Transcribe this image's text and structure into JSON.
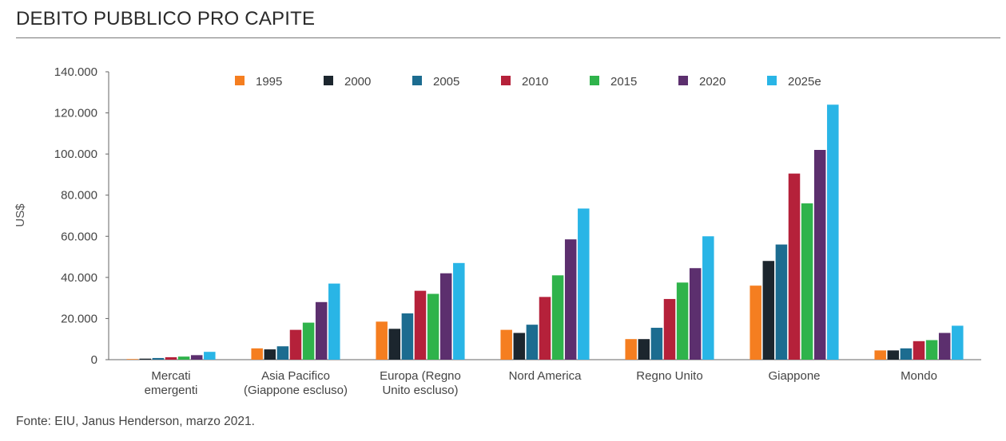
{
  "title": "DEBITO PUBBLICO PRO CAPITE",
  "source": "Fonte: EIU, Janus Henderson, marzo 2021.",
  "chart_data": {
    "type": "bar",
    "title": "DEBITO PUBBLICO PRO CAPITE",
    "xlabel": "",
    "ylabel": "US$",
    "ylim": [
      0,
      140000
    ],
    "yticks": [
      0,
      20000,
      40000,
      60000,
      80000,
      100000,
      120000,
      140000
    ],
    "ytick_labels": [
      "0",
      "20.000",
      "40.000",
      "60.000",
      "80.000",
      "100.000",
      "120.000",
      "140.000"
    ],
    "grid": false,
    "legend_position": "top",
    "categories": [
      [
        "Mercati",
        "emergenti"
      ],
      [
        "Asia Pacifico",
        "(Giappone escluso)"
      ],
      [
        "Europa (Regno",
        "Unito escluso)"
      ],
      [
        "Nord America"
      ],
      [
        "Regno Unito"
      ],
      [
        "Giappone"
      ],
      [
        "Mondo"
      ]
    ],
    "series": [
      {
        "name": "1995",
        "color": "#f57e20",
        "values": [
          300,
          5500,
          18500,
          14500,
          10000,
          36000,
          4500
        ]
      },
      {
        "name": "2000",
        "color": "#1c262e",
        "values": [
          500,
          5000,
          15000,
          13000,
          10000,
          48000,
          4500
        ]
      },
      {
        "name": "2005",
        "color": "#1c6c90",
        "values": [
          800,
          6500,
          22500,
          17000,
          15500,
          56000,
          5500
        ]
      },
      {
        "name": "2010",
        "color": "#b5213a",
        "values": [
          1200,
          14500,
          33500,
          30500,
          29500,
          90500,
          9000
        ]
      },
      {
        "name": "2015",
        "color": "#2fb34b",
        "values": [
          1500,
          18000,
          32000,
          41000,
          37500,
          76000,
          9500
        ]
      },
      {
        "name": "2020",
        "color": "#5c2f6e",
        "values": [
          2200,
          28000,
          42000,
          58500,
          44500,
          102000,
          13000
        ]
      },
      {
        "name": "2025e",
        "color": "#29b5e6",
        "values": [
          3800,
          37000,
          47000,
          73500,
          60000,
          124000,
          16500
        ]
      }
    ]
  }
}
